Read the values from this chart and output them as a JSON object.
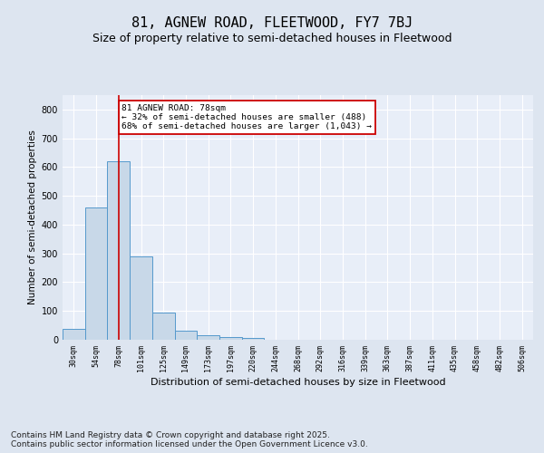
{
  "title": "81, AGNEW ROAD, FLEETWOOD, FY7 7BJ",
  "subtitle": "Size of property relative to semi-detached houses in Fleetwood",
  "xlabel": "Distribution of semi-detached houses by size in Fleetwood",
  "ylabel": "Number of semi-detached properties",
  "categories": [
    "30sqm",
    "54sqm",
    "78sqm",
    "101sqm",
    "125sqm",
    "149sqm",
    "173sqm",
    "197sqm",
    "220sqm",
    "244sqm",
    "268sqm",
    "292sqm",
    "316sqm",
    "339sqm",
    "363sqm",
    "387sqm",
    "411sqm",
    "435sqm",
    "458sqm",
    "482sqm",
    "506sqm"
  ],
  "values": [
    38,
    460,
    620,
    290,
    93,
    33,
    15,
    10,
    5,
    0,
    0,
    0,
    0,
    0,
    0,
    0,
    0,
    0,
    0,
    0,
    0
  ],
  "bar_color": "#c8d8e8",
  "bar_edge_color": "#5599cc",
  "vline_x_index": 2,
  "vline_color": "#cc0000",
  "annotation_text": "81 AGNEW ROAD: 78sqm\n← 32% of semi-detached houses are smaller (488)\n68% of semi-detached houses are larger (1,043) →",
  "annotation_box_color": "#ffffff",
  "annotation_box_edge_color": "#cc0000",
  "ylim": [
    0,
    850
  ],
  "yticks": [
    0,
    100,
    200,
    300,
    400,
    500,
    600,
    700,
    800
  ],
  "background_color": "#dde5f0",
  "plot_background": "#e8eef8",
  "grid_color": "#ffffff",
  "footer_text": "Contains HM Land Registry data © Crown copyright and database right 2025.\nContains public sector information licensed under the Open Government Licence v3.0.",
  "title_fontsize": 11,
  "subtitle_fontsize": 9,
  "footer_fontsize": 6.5,
  "tick_fontsize": 6,
  "ylabel_fontsize": 7.5,
  "xlabel_fontsize": 8
}
